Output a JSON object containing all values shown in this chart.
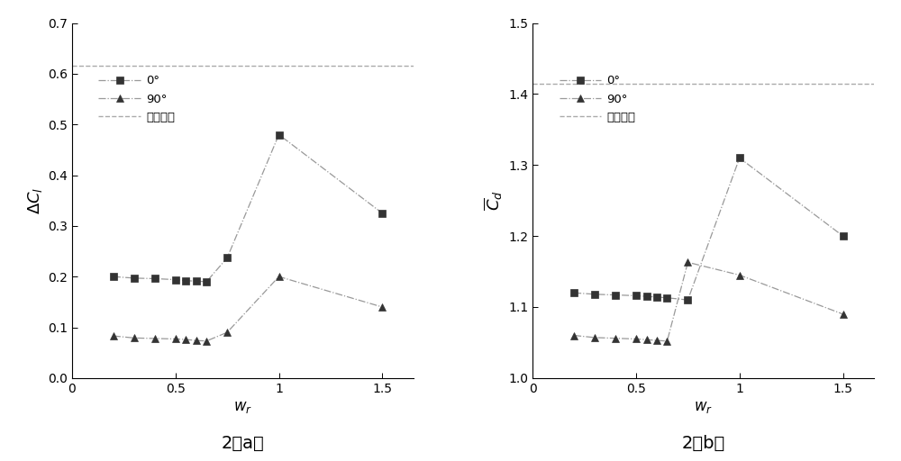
{
  "plot_a": {
    "title": "2（a）",
    "xlabel": "w_r",
    "ylabel_latex": "$\\Delta C_l$",
    "xlim": [
      0,
      1.65
    ],
    "ylim": [
      0,
      0.7
    ],
    "yticks": [
      0,
      0.1,
      0.2,
      0.3,
      0.4,
      0.5,
      0.6,
      0.7
    ],
    "xticks": [
      0,
      0.5,
      1.0,
      1.5
    ],
    "xticklabels": [
      "0",
      "0.5",
      "1",
      "1.5"
    ],
    "series_0deg_x": [
      0.2,
      0.3,
      0.4,
      0.5,
      0.55,
      0.6,
      0.65,
      0.75,
      1.0,
      1.5
    ],
    "series_0deg_y": [
      0.2,
      0.197,
      0.196,
      0.194,
      0.192,
      0.191,
      0.19,
      0.237,
      0.48,
      0.325
    ],
    "series_90deg_x": [
      0.2,
      0.3,
      0.4,
      0.5,
      0.55,
      0.6,
      0.65,
      0.75,
      1.0,
      1.5
    ],
    "series_90deg_y": [
      0.083,
      0.079,
      0.078,
      0.077,
      0.076,
      0.074,
      0.073,
      0.09,
      0.2,
      0.14
    ],
    "single_cyl_value": 0.615,
    "legend_0": "0°",
    "legend_90": "90°",
    "legend_cyl": "单个圆柱"
  },
  "plot_b": {
    "title": "2（b）",
    "xlabel": "w_r",
    "ylabel_latex": "$\\overline{C}_d$",
    "xlim": [
      0,
      1.65
    ],
    "ylim": [
      1.0,
      1.5
    ],
    "yticks": [
      1.0,
      1.1,
      1.2,
      1.3,
      1.4,
      1.5
    ],
    "xticks": [
      0,
      0.5,
      1.0,
      1.5
    ],
    "xticklabels": [
      "0",
      "0.5",
      "1",
      "1.5"
    ],
    "series_0deg_x": [
      0.2,
      0.3,
      0.4,
      0.5,
      0.55,
      0.6,
      0.65,
      0.75,
      1.0,
      1.5
    ],
    "series_0deg_y": [
      1.12,
      1.118,
      1.117,
      1.116,
      1.115,
      1.114,
      1.113,
      1.11,
      1.31,
      1.2
    ],
    "series_90deg_x": [
      0.2,
      0.3,
      0.4,
      0.5,
      0.55,
      0.6,
      0.65,
      0.75,
      1.0,
      1.5
    ],
    "series_90deg_y": [
      1.06,
      1.057,
      1.056,
      1.055,
      1.054,
      1.053,
      1.052,
      1.163,
      1.145,
      1.09
    ],
    "single_cyl_value": 1.415,
    "legend_0": "0°",
    "legend_90": "90°",
    "legend_cyl": "单个圆柱"
  },
  "line_color": "#999999",
  "marker_color": "#333333",
  "single_line_color": "#aaaaaa",
  "figsize": [
    10.0,
    5.12
  ],
  "dpi": 100
}
